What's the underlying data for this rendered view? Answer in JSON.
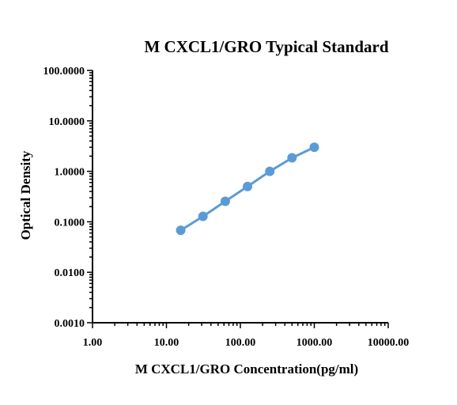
{
  "chart_data": {
    "type": "line",
    "title": "M CXCL1/GRO Typical Standard",
    "xlabel": "M CXCL1/GRO Concentration(pg/ml)",
    "ylabel": "Optical Density",
    "x_scale": "log",
    "y_scale": "log",
    "xlim": [
      1,
      10000
    ],
    "ylim": [
      0.001,
      100
    ],
    "x_ticks": [
      1,
      10,
      100,
      1000,
      10000
    ],
    "x_tick_labels": [
      "1.00",
      "10.00",
      "100.00",
      "1000.00",
      "10000.00"
    ],
    "y_ticks": [
      0.001,
      0.01,
      0.1,
      1,
      10,
      100
    ],
    "y_tick_labels": [
      "0.0010",
      "0.0100",
      "0.1000",
      "1.0000",
      "10.0000",
      "100.0000"
    ],
    "grid": false,
    "series_color": "#5b9bd5",
    "series": [
      {
        "x": [
          15.6,
          31.2,
          62.5,
          125,
          250,
          500,
          1000
        ],
        "y": [
          0.068,
          0.128,
          0.255,
          0.5,
          1.0,
          1.85,
          3.0
        ]
      }
    ]
  }
}
